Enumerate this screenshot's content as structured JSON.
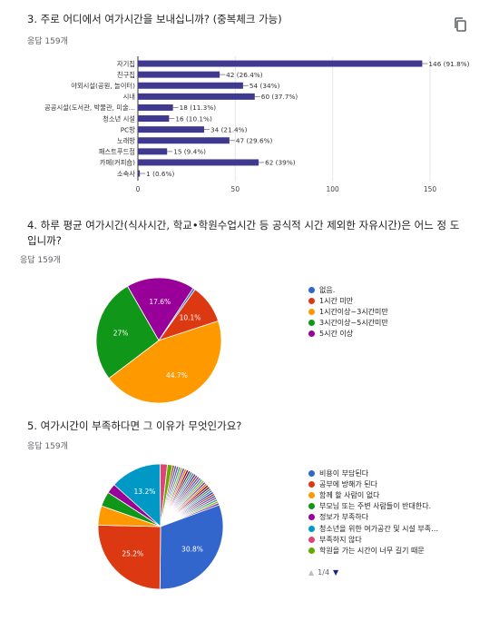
{
  "q3": {
    "title": "3. 주로 어디에서 여가시간을 보내십니까? (중복체크 가능)",
    "responses": "응답 159개",
    "copy_icon": "copy-icon",
    "chart_data": {
      "type": "bar",
      "orientation": "horizontal",
      "categories": [
        "자기집",
        "친구집",
        "야외시설(공원, 놀이터)",
        "시내",
        "공공시설(도서관, 박물관, 미술…",
        "청소년 시설",
        "PC방",
        "노래방",
        "패스트푸드점",
        "카페(커피숍)",
        "소속사"
      ],
      "values": [
        146,
        42,
        54,
        60,
        18,
        16,
        34,
        47,
        15,
        62,
        1
      ],
      "labels": [
        "146 (91.8%)",
        "42 (26.4%)",
        "54 (34%)",
        "60 (37.7%)",
        "18 (11.3%)",
        "16 (10.1%)",
        "34 (21.4%)",
        "47 (29.6%)",
        "15 (9.4%)",
        "62 (39%)",
        "1 (0.6%)"
      ],
      "xticks": [
        "0",
        "50",
        "100",
        "150"
      ],
      "xlim": [
        0,
        150
      ],
      "color": "#3f3a8f"
    }
  },
  "q4": {
    "title": "4. 하루 평균 여가시간(식사시간, 학교•학원수업시간 등 공식적 시간 제외한 자유시간)은 어느 정 도 입니까?",
    "responses": "응답 159개",
    "chart_data": {
      "type": "pie",
      "categories": [
        "없음.",
        "1시간 미만",
        "1시간이상~3시간미만",
        "3시간이상~5시간미만",
        "5시간 이상"
      ],
      "values": [
        0.6,
        10.1,
        44.7,
        27,
        17.6
      ],
      "slice_labels": [
        "",
        "10.1%",
        "44.7%",
        "27%",
        "17.6%"
      ],
      "colors": [
        "#3366cc",
        "#dc3912",
        "#ff9900",
        "#109618",
        "#990099"
      ]
    }
  },
  "q5": {
    "title": "5. 여가시간이 부족하다면 그 이유가 무엇인가요?",
    "responses": "응답 159개",
    "chart_data": {
      "type": "pie",
      "categories": [
        "비용이 부담된다",
        "공부에 방해가 된다",
        "함께 할 사람이 없다",
        "부모님 또는 주변 사람들이 반대한다.",
        "정보가 부족하다",
        "청소년을 위한 여가공간 및 시설 부족…",
        "부족하지 않다",
        "학원을 가는 시간이 너무 길기 때문"
      ],
      "values": [
        30.8,
        25.2,
        5.0,
        3.8,
        2.5,
        13.2,
        1.9,
        1.3
      ],
      "slice_labels": [
        "30.8%",
        "25.2%",
        "",
        "",
        "",
        "13.2%",
        "",
        ""
      ],
      "colors": [
        "#3366cc",
        "#dc3912",
        "#ff9900",
        "#109618",
        "#990099",
        "#0099c6",
        "#dd4477",
        "#66aa00"
      ],
      "other_slices": 30,
      "other_colors": [
        "#b82e2e",
        "#316395",
        "#994499",
        "#22aa99",
        "#aaaa11",
        "#6633cc",
        "#e67300",
        "#8b0707",
        "#651067",
        "#329262",
        "#5574a6",
        "#3b3eac"
      ],
      "pager": "1/4"
    }
  }
}
